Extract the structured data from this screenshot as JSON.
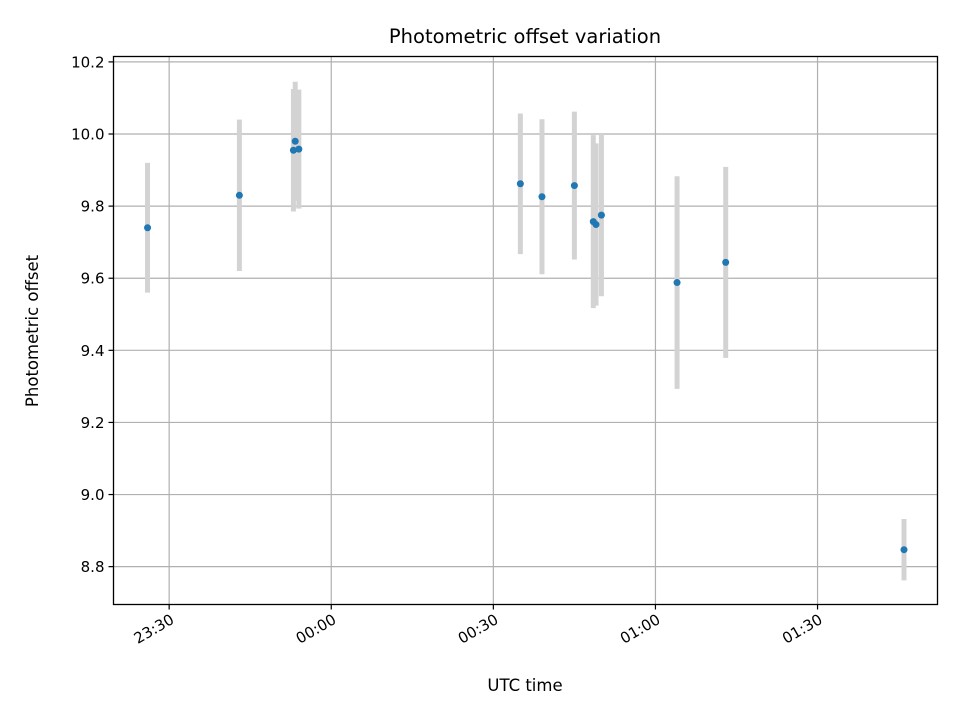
{
  "chart_data": {
    "type": "scatter",
    "title": "Photometric offset variation",
    "xlabel": "UTC time",
    "ylabel": "Photometric offset",
    "x_ticks": [
      "23:30",
      "00:00",
      "00:30",
      "01:00",
      "01:30"
    ],
    "x_tick_minutes": [
      -30,
      0,
      30,
      60,
      90
    ],
    "xlim_minutes": [
      -40.3,
      112.2
    ],
    "y_ticks": [
      "8.8",
      "9.0",
      "9.2",
      "9.4",
      "9.6",
      "9.8",
      "10.0",
      "10.2"
    ],
    "y_tick_values": [
      8.8,
      9.0,
      9.2,
      9.4,
      9.6,
      9.8,
      10.0,
      10.2
    ],
    "ylim": [
      8.695,
      10.215
    ],
    "grid": true,
    "colors": {
      "marker": "#1f77b4",
      "errorbar": "#d3d3d3",
      "grid": "#b0b0b0"
    },
    "series": [
      {
        "points": [
          {
            "x": "23:26",
            "y": 9.74,
            "err": 0.18
          },
          {
            "x": "23:43",
            "y": 9.83,
            "err": 0.21
          },
          {
            "x": "23:53:20",
            "y": 9.98,
            "err": 0.165
          },
          {
            "x": "23:53:00",
            "y": 9.955,
            "err": 0.17
          },
          {
            "x": "23:54",
            "y": 9.958,
            "err": 0.165
          },
          {
            "x": "00:35",
            "y": 9.862,
            "err": 0.195
          },
          {
            "x": "00:39",
            "y": 9.826,
            "err": 0.215
          },
          {
            "x": "00:45",
            "y": 9.857,
            "err": 0.205
          },
          {
            "x": "00:48:30",
            "y": 9.757,
            "err": 0.24
          },
          {
            "x": "00:49",
            "y": 9.749,
            "err": 0.225
          },
          {
            "x": "00:50",
            "y": 9.775,
            "err": 0.225
          },
          {
            "x": "01:04",
            "y": 9.588,
            "err": 0.295
          },
          {
            "x": "01:13",
            "y": 9.644,
            "err": 0.265
          },
          {
            "x": "01:46",
            "y": 8.847,
            "err": 0.085
          }
        ]
      }
    ]
  }
}
